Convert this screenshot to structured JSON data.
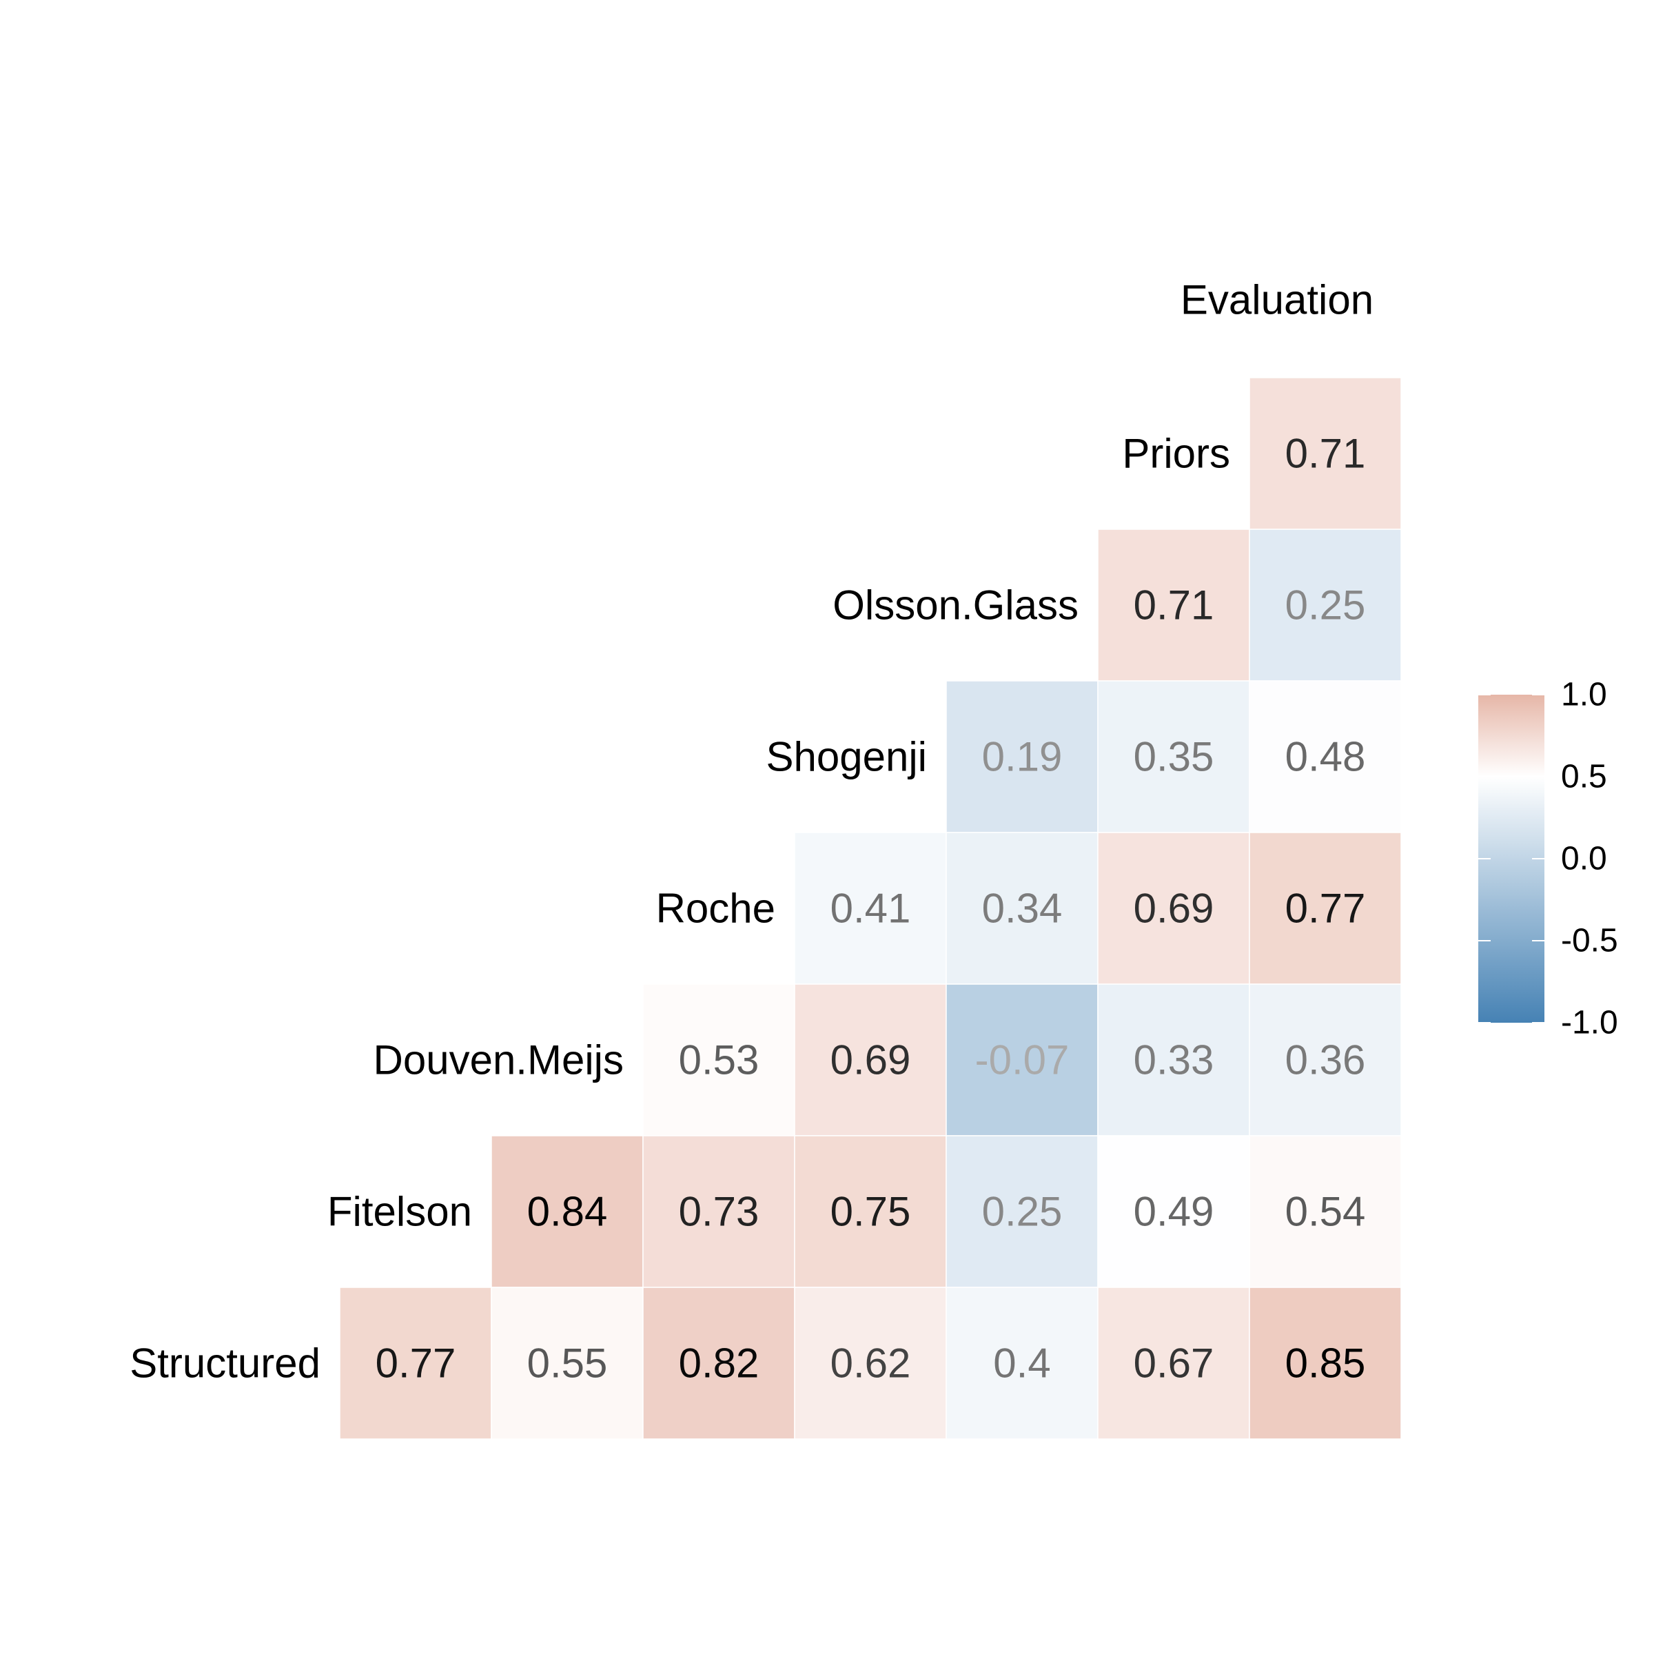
{
  "chart_data": {
    "type": "heatmap",
    "subtype": "correlation-triangle",
    "labels": [
      "Structured",
      "Fitelson",
      "Douven.Meijs",
      "Roche",
      "Shogenji",
      "Olsson.Glass",
      "Priors",
      "Evaluation"
    ],
    "top_label": "Evaluation",
    "rows": [
      {
        "label": "Priors",
        "values": [
          0.71
        ]
      },
      {
        "label": "Olsson.Glass",
        "values": [
          0.71,
          0.25
        ]
      },
      {
        "label": "Shogenji",
        "values": [
          0.19,
          0.35,
          0.48
        ]
      },
      {
        "label": "Roche",
        "values": [
          0.41,
          0.34,
          0.69,
          0.77
        ]
      },
      {
        "label": "Douven.Meijs",
        "values": [
          0.53,
          0.69,
          -0.07,
          0.33,
          0.36
        ]
      },
      {
        "label": "Fitelson",
        "values": [
          0.84,
          0.73,
          0.75,
          0.25,
          0.49,
          0.54
        ]
      },
      {
        "label": "Structured",
        "values": [
          0.77,
          0.55,
          0.82,
          0.62,
          0.4,
          0.67,
          0.85
        ]
      }
    ],
    "value_labels": {
      "Priors": [
        "0.71"
      ],
      "Olsson.Glass": [
        "0.71",
        "0.25"
      ],
      "Shogenji": [
        "0.19",
        "0.35",
        "0.48"
      ],
      "Roche": [
        "0.41",
        "0.34",
        "0.69",
        "0.77"
      ],
      "Douven.Meijs": [
        "0.53",
        "0.69",
        "-0.07",
        "0.33",
        "0.36"
      ],
      "Fitelson": [
        "0.84",
        "0.73",
        "0.75",
        "0.25",
        "0.49",
        "0.54"
      ],
      "Structured": [
        "0.77",
        "0.55",
        "0.82",
        "0.62",
        "0.4",
        "0.67",
        "0.85"
      ]
    },
    "colorbar": {
      "min": -1.0,
      "max": 1.0,
      "midpoint": 0.5,
      "low_color": "#4682b4",
      "mid_color": "#ffffff",
      "high_color": "#e6b6a7",
      "ticks": [
        1.0,
        0.5,
        0.0,
        -0.5,
        -1.0
      ],
      "tick_labels": [
        "1.0",
        "0.5",
        "0.0",
        "-0.5",
        "-1.0"
      ],
      "position": "right"
    },
    "grid": false
  }
}
